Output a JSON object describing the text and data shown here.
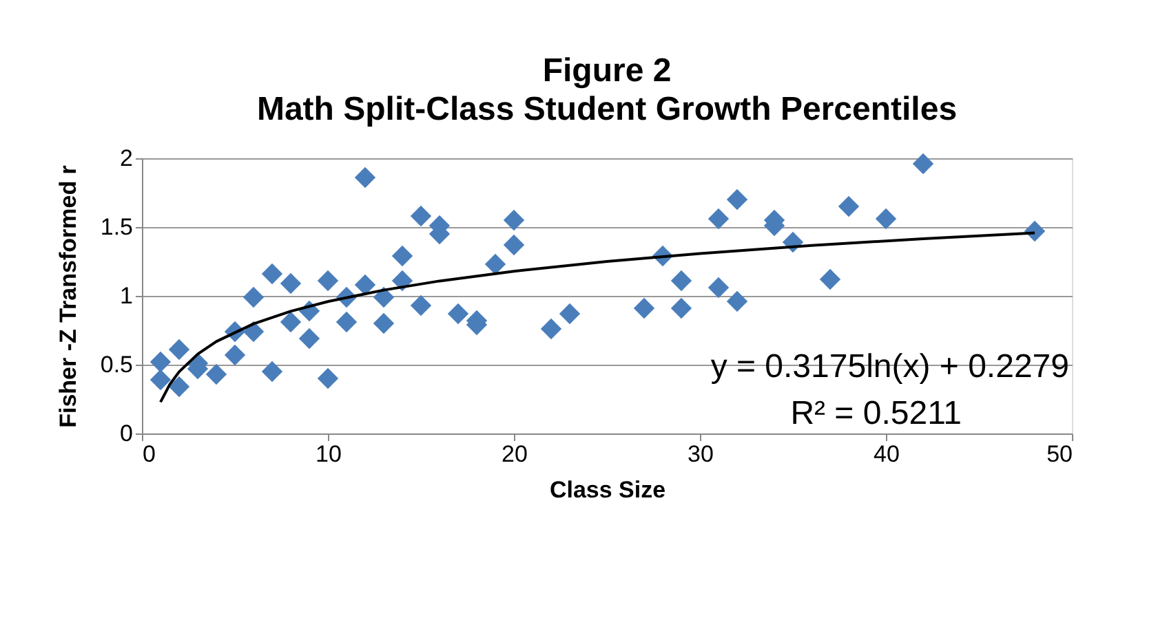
{
  "chart_data": {
    "type": "scatter",
    "title": "Figure 2",
    "subtitle": "Math Split-Class Student Growth Percentiles",
    "xlabel": "Class Size",
    "ylabel": "Fisher -Z Transformed r",
    "series": [
      {
        "color": "#4a7ebb",
        "marker": "diamond",
        "x": [
          1,
          1,
          2,
          2,
          3,
          3,
          4,
          5,
          5,
          6,
          6,
          7,
          7,
          8,
          8,
          9,
          9,
          10,
          10,
          11,
          11,
          12,
          12,
          13,
          13,
          14,
          14,
          15,
          15,
          16,
          16,
          17,
          18,
          18,
          19,
          20,
          20,
          22,
          23,
          27,
          28,
          29,
          29,
          31,
          31,
          32,
          32,
          34,
          34,
          35,
          37,
          38,
          40,
          42,
          48
        ],
        "values": [
          0.52,
          0.39,
          0.61,
          0.34,
          0.51,
          0.47,
          0.43,
          0.74,
          0.57,
          0.99,
          0.74,
          1.16,
          0.45,
          1.09,
          0.81,
          0.89,
          0.69,
          1.11,
          0.4,
          0.99,
          0.81,
          1.86,
          1.08,
          0.99,
          0.8,
          1.29,
          1.11,
          1.58,
          0.93,
          1.51,
          1.45,
          0.87,
          0.82,
          0.79,
          1.23,
          1.55,
          1.37,
          0.76,
          0.87,
          0.91,
          1.29,
          1.11,
          0.91,
          1.56,
          1.06,
          1.7,
          0.96,
          1.55,
          1.51,
          1.39,
          1.12,
          1.65,
          1.56,
          1.96,
          1.47
        ]
      },
      {
        "type": "line",
        "color": "#000000",
        "marker": "none",
        "line_style": "solid",
        "x": [
          1,
          1.5,
          2,
          3,
          4,
          6,
          8,
          10,
          13,
          16,
          20,
          25,
          30,
          36,
          42,
          48
        ],
        "values": [
          0.228,
          0.357,
          0.448,
          0.577,
          0.668,
          0.797,
          0.888,
          0.959,
          1.042,
          1.108,
          1.179,
          1.25,
          1.308,
          1.366,
          1.415,
          1.457
        ]
      }
    ],
    "xlim": [
      0,
      50
    ],
    "xticks": [
      0,
      10,
      20,
      30,
      40,
      50
    ],
    "ylim": [
      0,
      2
    ],
    "yticks": [
      0,
      0.5,
      1,
      1.5,
      2
    ],
    "grid": "y",
    "annotations": [
      "y = 0.3175ln(x) + 0.2279",
      "R² = 0.5211"
    ]
  }
}
